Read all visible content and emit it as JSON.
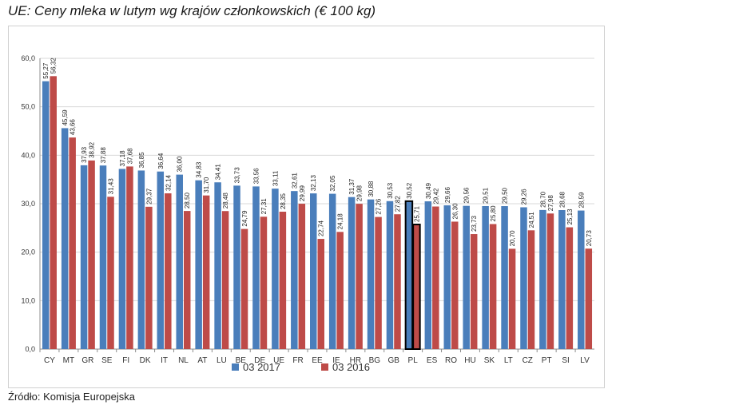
{
  "title": "UE: Ceny mleka w lutym wg krajów członkowskich (€ 100 kg)",
  "source": "Źródło: Komisja Europejska",
  "colors": {
    "series_2017": "#4a7ebb",
    "series_2016": "#be4b48",
    "grid": "#d9d9d9",
    "highlight_outline": "#000000"
  },
  "chart_data": {
    "type": "bar",
    "title": "UE: Ceny mleka w lutym wg krajów członkowskich (€ 100 kg)",
    "xlabel": "",
    "ylabel": "",
    "ylim": [
      0,
      60
    ],
    "yticks": [
      "0,0",
      "10,0",
      "20,0",
      "30,0",
      "40,0",
      "50,0",
      "60,0"
    ],
    "grid": true,
    "legend_position": "bottom",
    "highlight_category": "PL",
    "categories": [
      "CY",
      "MT",
      "GR",
      "SE",
      "FI",
      "DK",
      "IT",
      "NL",
      "AT",
      "LU",
      "BE",
      "DE",
      "UE",
      "FR",
      "EE",
      "IE",
      "HR",
      "BG",
      "GB",
      "PL",
      "ES",
      "RO",
      "HU",
      "SK",
      "LT",
      "CZ",
      "PT",
      "SI",
      "LV"
    ],
    "series": [
      {
        "name": "03 2017",
        "values": [
          55.27,
          45.59,
          37.93,
          37.88,
          37.18,
          36.85,
          36.64,
          36.0,
          34.83,
          34.41,
          33.73,
          33.56,
          33.11,
          32.61,
          32.13,
          32.05,
          31.37,
          30.88,
          30.53,
          30.52,
          30.49,
          29.66,
          29.56,
          29.51,
          29.5,
          29.26,
          28.7,
          28.68,
          28.59
        ],
        "labels": [
          "55,27",
          "45,59",
          "37,93",
          "37,88",
          "37,18",
          "36,85",
          "36,64",
          "36,00",
          "34,83",
          "34,41",
          "33,73",
          "33,56",
          "33,11",
          "32,61",
          "32,13",
          "32,05",
          "31,37",
          "30,88",
          "30,53",
          "30,52",
          "30,49",
          "29,66",
          "29,56",
          "29,51",
          "29,50",
          "29,26",
          "28,70",
          "28,68",
          "28,59"
        ]
      },
      {
        "name": "03 2016",
        "values": [
          56.32,
          43.66,
          38.92,
          31.43,
          37.68,
          29.37,
          32.14,
          28.5,
          31.7,
          28.48,
          24.79,
          27.31,
          28.35,
          29.99,
          22.74,
          24.18,
          29.98,
          27.26,
          27.82,
          25.71,
          29.42,
          26.3,
          23.73,
          25.8,
          20.7,
          24.51,
          27.98,
          25.13,
          20.73
        ],
        "labels": [
          "56,32",
          "43,66",
          "38,92",
          "31,43",
          "37,68",
          "29,37",
          "32,14",
          "28,50",
          "31,70",
          "28,48",
          "24,79",
          "27,31",
          "28,35",
          "29,99",
          "22,74",
          "24,18",
          "29,98",
          "27,26",
          "27,82",
          "25,71",
          "29,42",
          "26,30",
          "23,73",
          "25,80",
          "20,70",
          "24,51",
          "27,98",
          "25,13",
          "20,73"
        ]
      }
    ]
  }
}
